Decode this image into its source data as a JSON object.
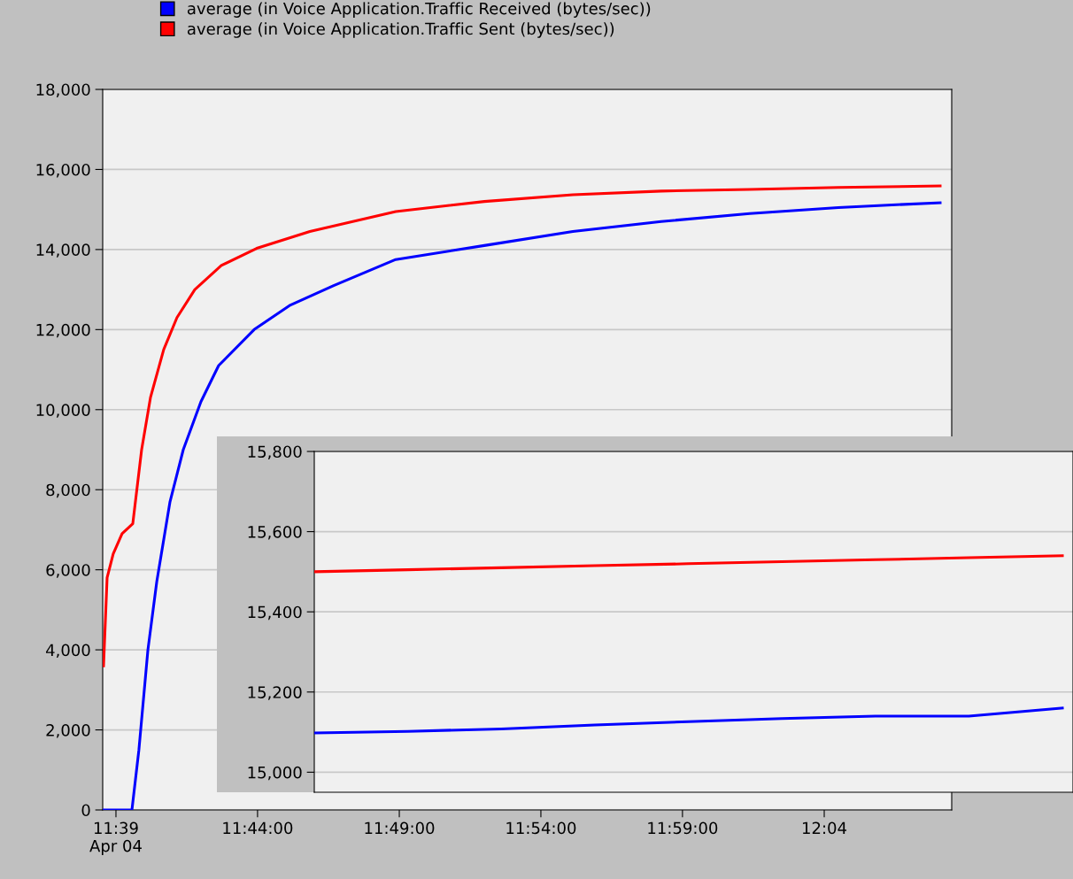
{
  "chart_data": [
    {
      "type": "line",
      "series": [
        {
          "name": "average (in Voice Application.Traffic Received (bytes/sec))",
          "color": "#0000ff",
          "x": [
            11.6427,
            11.6594,
            11.6635,
            11.6688,
            11.674,
            11.6818,
            11.6896,
            11.7,
            11.7104,
            11.7313,
            11.7521,
            11.7781,
            11.8146,
            11.8667,
            11.9188,
            11.9708,
            12.0229,
            12.075,
            12.1349
          ],
          "values": [
            0,
            0,
            1500,
            4000,
            5700,
            7700,
            9000,
            10200,
            11100,
            12000,
            12600,
            13100,
            13750,
            14100,
            14450,
            14700,
            14900,
            15050,
            15170
          ]
        },
        {
          "name": "average (in Voice Application.Traffic Sent (bytes/sec))",
          "color": "#ff0000",
          "x": [
            11.6427,
            11.6448,
            11.6484,
            11.6536,
            11.6599,
            11.6651,
            11.6703,
            11.6781,
            11.6859,
            11.6964,
            11.712,
            11.7328,
            11.7641,
            11.8146,
            11.8667,
            11.9188,
            11.9708,
            12.0229,
            12.075,
            12.1349
          ],
          "values": [
            3600,
            5800,
            6400,
            6900,
            7150,
            9000,
            10300,
            11500,
            12300,
            13000,
            13600,
            14030,
            14450,
            14950,
            15200,
            15370,
            15460,
            15500,
            15550,
            15590
          ]
        }
      ],
      "xlim": [
        11.6422,
        12.1417
      ],
      "xticks": [
        {
          "value": 11.65,
          "label": "11:39\nApr 04"
        },
        {
          "value": 11.7333,
          "label": "11:44:00"
        },
        {
          "value": 11.8167,
          "label": "11:49:00"
        },
        {
          "value": 11.9,
          "label": "11:54:00"
        },
        {
          "value": 11.9833,
          "label": "11:59:00"
        },
        {
          "value": 12.0667,
          "label": "12:04"
        }
      ],
      "ylim": [
        0,
        18000
      ],
      "yticks": [
        {
          "value": 0,
          "label": "0"
        },
        {
          "value": 2000,
          "label": "2,000"
        },
        {
          "value": 4000,
          "label": "4,000"
        },
        {
          "value": 6000,
          "label": "6,000"
        },
        {
          "value": 8000,
          "label": "8,000"
        },
        {
          "value": 10000,
          "label": "10,000"
        },
        {
          "value": 12000,
          "label": "12,000"
        },
        {
          "value": 14000,
          "label": "14,000"
        },
        {
          "value": 16000,
          "label": "16,000"
        },
        {
          "value": 18000,
          "label": "18,000"
        }
      ],
      "grid": "y",
      "legend": "top"
    },
    {
      "type": "line",
      "categories": [
        null,
        null,
        null,
        null,
        null,
        null,
        null,
        null,
        null
      ],
      "series": [
        {
          "color": "#ff0000",
          "values": [
            15500,
            15505,
            15510,
            15515,
            15520,
            15525,
            15530,
            15535,
            15540
          ]
        },
        {
          "color": "#0000ff",
          "values": [
            15098,
            15102,
            15108,
            15118,
            15126,
            15134,
            15140,
            15140,
            15160
          ]
        }
      ],
      "ylim": [
        14950,
        15800
      ],
      "yticks": [
        {
          "value": 15000,
          "label": "15,000"
        },
        {
          "value": 15200,
          "label": "15,200"
        },
        {
          "value": 15400,
          "label": "15,400"
        },
        {
          "value": 15600,
          "label": "15,600"
        },
        {
          "value": 15800,
          "label": "15,800"
        }
      ],
      "grid": "y",
      "tick_labels": "y"
    }
  ]
}
